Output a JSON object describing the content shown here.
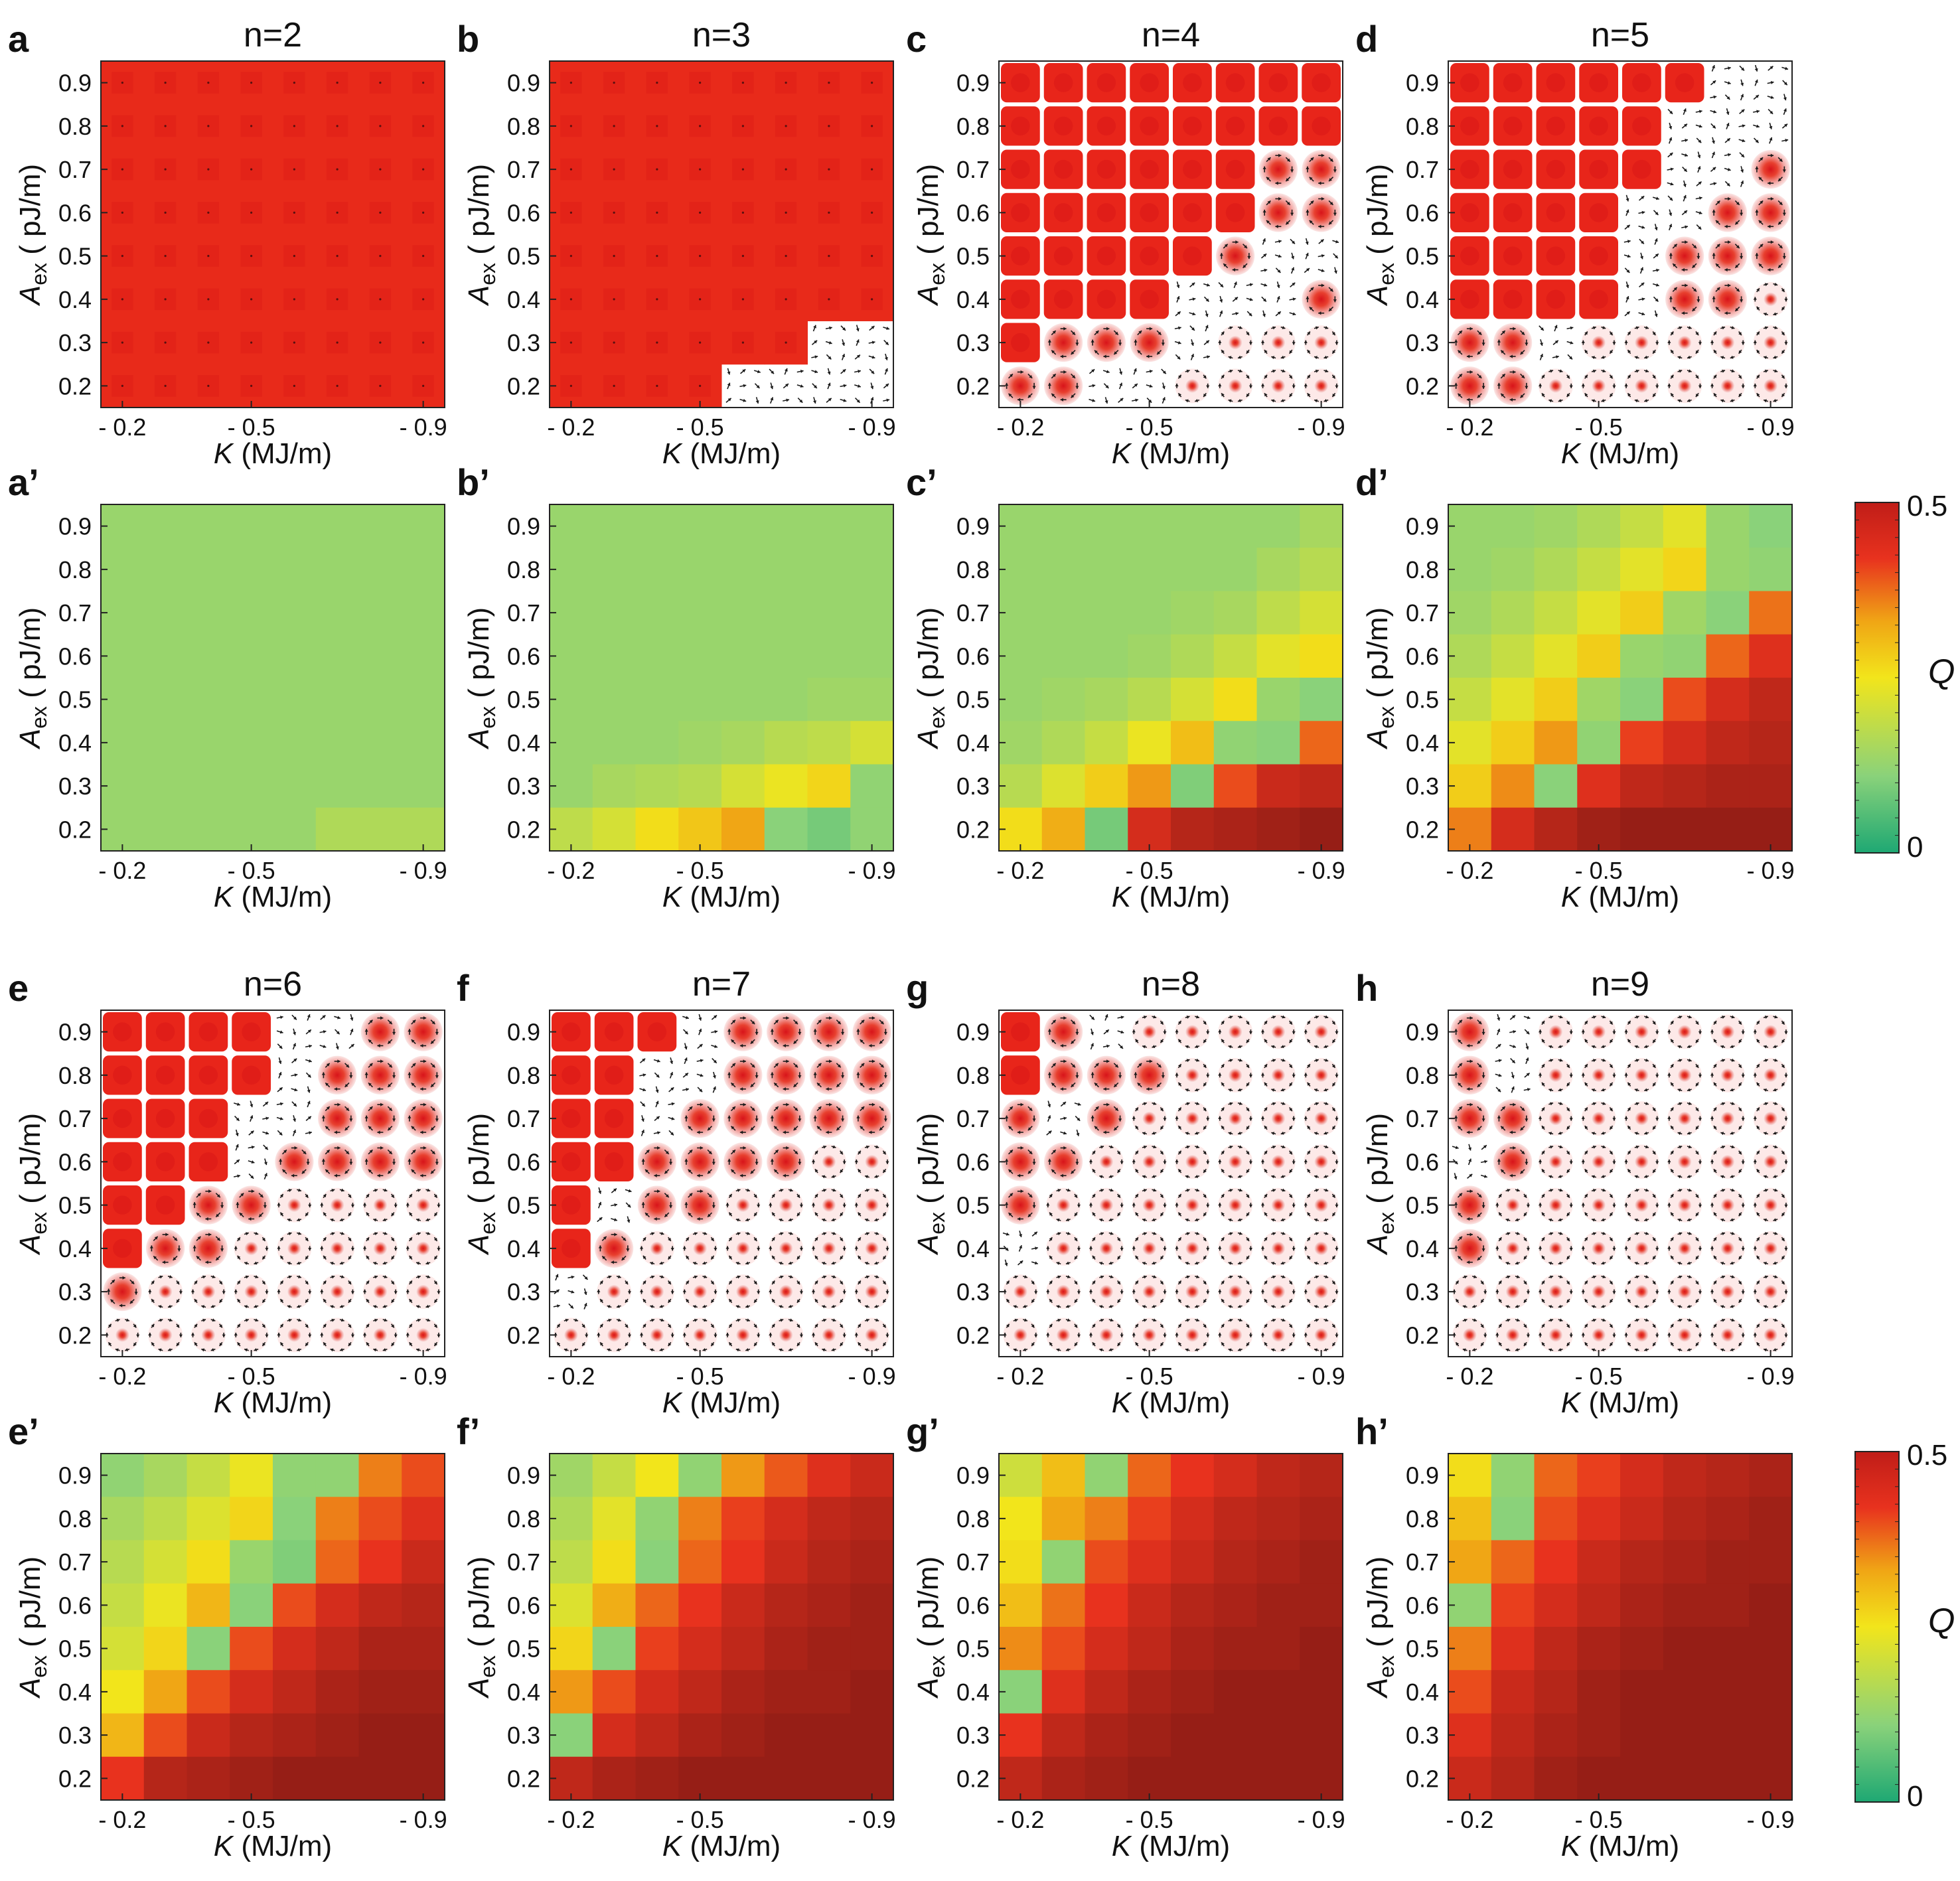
{
  "figure": {
    "xlabel": "K (MJ/m)",
    "ylabel": "A_ex (pJ/m)",
    "xlabel_parts": {
      "italic": "K",
      "rest": " (MJ/m)"
    },
    "ylabel_parts": {
      "italic": "A",
      "sub": "ex",
      "rest": " ( pJ/m)"
    },
    "x_ticks": [
      "- 0.2",
      "- 0.5",
      "- 0.9"
    ],
    "y_ticks": [
      "0.9",
      "0.8",
      "0.7",
      "0.6",
      "0.5",
      "0.4",
      "0.3",
      "0.2"
    ],
    "colorbar": {
      "label": "Q",
      "max_label": "0.5",
      "min_label": "0",
      "min": 0,
      "max": 0.5,
      "colors": [
        "#1ea873",
        "#8ad27a",
        "#f2e51b",
        "#f0a615",
        "#e8321e",
        "#c01d18"
      ]
    },
    "colors": {
      "skyrmion_fill": "#e8251a",
      "background": "#ffffff",
      "arrow": "#1a1a1a"
    }
  },
  "chart_data": [
    {
      "panel": "a",
      "n": 2,
      "title": "n=2",
      "type": "heatmap",
      "plot": "spin-texture",
      "x": [
        -0.2,
        -0.3,
        -0.4,
        -0.5,
        -0.6,
        -0.7,
        -0.8,
        -0.9
      ],
      "y": [
        0.9,
        0.8,
        0.7,
        0.6,
        0.5,
        0.4,
        0.3,
        0.2
      ],
      "state": [
        "FFFFFFFF",
        "FFFFFFFF",
        "FFFFFFFF",
        "FFFFFFFF",
        "FFFFFFFF",
        "FFFFFFFF",
        "FFFFFFFF",
        "FFFFFFFF"
      ]
    },
    {
      "panel": "b",
      "n": 3,
      "title": "n=3",
      "type": "heatmap",
      "plot": "spin-texture",
      "x": [
        -0.2,
        -0.3,
        -0.4,
        -0.5,
        -0.6,
        -0.7,
        -0.8,
        -0.9
      ],
      "y": [
        0.9,
        0.8,
        0.7,
        0.6,
        0.5,
        0.4,
        0.3,
        0.2
      ],
      "state": [
        "FFFFFFFF",
        "FFFFFFFF",
        "FFFFFFFF",
        "FFFFFFFF",
        "FFFFFFFF",
        "FFFFFFFF",
        "FFFFFFTT",
        "FFFFTTTT"
      ]
    },
    {
      "panel": "c",
      "n": 4,
      "title": "n=4",
      "type": "heatmap",
      "plot": "spin-texture",
      "x": [
        -0.2,
        -0.3,
        -0.4,
        -0.5,
        -0.6,
        -0.7,
        -0.8,
        -0.9
      ],
      "y": [
        0.9,
        0.8,
        0.7,
        0.6,
        0.5,
        0.4,
        0.3,
        0.2
      ],
      "state": [
        "BBBBBBBB",
        "BBBBBBBB",
        "BBBBBBMM",
        "BBBBBBMM",
        "BBBBBMTT",
        "BBBBTTTM",
        "BMMMTSSS",
        "MMTTSSSS"
      ]
    },
    {
      "panel": "d",
      "n": 5,
      "title": "n=5",
      "type": "heatmap",
      "plot": "spin-texture",
      "x": [
        -0.2,
        -0.3,
        -0.4,
        -0.5,
        -0.6,
        -0.7,
        -0.8,
        -0.9
      ],
      "y": [
        0.9,
        0.8,
        0.7,
        0.6,
        0.5,
        0.4,
        0.3,
        0.2
      ],
      "state": [
        "BBBBBBTT",
        "BBBBBTTT",
        "BBBBBTTM",
        "BBBBTTMM",
        "BBBBTMMM",
        "BBBBTMMS",
        "MMTSSSSS",
        "MMSSSSSS"
      ]
    },
    {
      "panel": "a'",
      "n": 2,
      "type": "heatmap",
      "plot": "Q",
      "x": [
        -0.2,
        -0.3,
        -0.4,
        -0.5,
        -0.6,
        -0.7,
        -0.8,
        -0.9
      ],
      "y": [
        0.9,
        0.8,
        0.7,
        0.6,
        0.5,
        0.4,
        0.3,
        0.2
      ],
      "Q": [
        [
          0.13,
          0.13,
          0.13,
          0.13,
          0.13,
          0.13,
          0.13,
          0.13
        ],
        [
          0.13,
          0.13,
          0.13,
          0.13,
          0.13,
          0.13,
          0.13,
          0.13
        ],
        [
          0.13,
          0.13,
          0.13,
          0.13,
          0.13,
          0.13,
          0.13,
          0.13
        ],
        [
          0.13,
          0.13,
          0.13,
          0.13,
          0.13,
          0.13,
          0.13,
          0.13
        ],
        [
          0.13,
          0.13,
          0.13,
          0.13,
          0.13,
          0.13,
          0.13,
          0.13
        ],
        [
          0.13,
          0.13,
          0.13,
          0.13,
          0.13,
          0.13,
          0.13,
          0.13
        ],
        [
          0.13,
          0.13,
          0.13,
          0.13,
          0.13,
          0.13,
          0.13,
          0.13
        ],
        [
          0.13,
          0.13,
          0.13,
          0.13,
          0.13,
          0.16,
          0.16,
          0.16
        ]
      ]
    },
    {
      "panel": "b'",
      "n": 3,
      "type": "heatmap",
      "plot": "Q",
      "x": [
        -0.2,
        -0.3,
        -0.4,
        -0.5,
        -0.6,
        -0.7,
        -0.8,
        -0.9
      ],
      "y": [
        0.9,
        0.8,
        0.7,
        0.6,
        0.5,
        0.4,
        0.3,
        0.2
      ],
      "Q": [
        [
          0.13,
          0.13,
          0.13,
          0.13,
          0.13,
          0.13,
          0.13,
          0.13
        ],
        [
          0.13,
          0.13,
          0.13,
          0.13,
          0.13,
          0.13,
          0.13,
          0.13
        ],
        [
          0.13,
          0.13,
          0.13,
          0.13,
          0.13,
          0.13,
          0.13,
          0.13
        ],
        [
          0.13,
          0.13,
          0.13,
          0.13,
          0.13,
          0.13,
          0.13,
          0.13
        ],
        [
          0.13,
          0.13,
          0.13,
          0.13,
          0.13,
          0.13,
          0.14,
          0.14
        ],
        [
          0.13,
          0.13,
          0.13,
          0.14,
          0.15,
          0.17,
          0.18,
          0.21
        ],
        [
          0.13,
          0.15,
          0.16,
          0.17,
          0.21,
          0.24,
          0.27,
          0.12
        ],
        [
          0.18,
          0.21,
          0.26,
          0.29,
          0.33,
          0.11,
          0.09,
          0.12
        ]
      ]
    },
    {
      "panel": "c'",
      "n": 4,
      "type": "heatmap",
      "plot": "Q",
      "x": [
        -0.2,
        -0.3,
        -0.4,
        -0.5,
        -0.6,
        -0.7,
        -0.8,
        -0.9
      ],
      "y": [
        0.9,
        0.8,
        0.7,
        0.6,
        0.5,
        0.4,
        0.3,
        0.2
      ],
      "Q": [
        [
          0.13,
          0.13,
          0.13,
          0.13,
          0.13,
          0.13,
          0.13,
          0.15
        ],
        [
          0.13,
          0.13,
          0.13,
          0.13,
          0.13,
          0.13,
          0.15,
          0.17
        ],
        [
          0.13,
          0.13,
          0.13,
          0.13,
          0.14,
          0.15,
          0.18,
          0.21
        ],
        [
          0.13,
          0.13,
          0.13,
          0.14,
          0.16,
          0.19,
          0.23,
          0.26
        ],
        [
          0.13,
          0.14,
          0.15,
          0.17,
          0.21,
          0.26,
          0.13,
          0.11
        ],
        [
          0.14,
          0.16,
          0.19,
          0.24,
          0.3,
          0.12,
          0.11,
          0.38
        ],
        [
          0.17,
          0.22,
          0.28,
          0.34,
          0.1,
          0.4,
          0.45,
          0.46
        ],
        [
          0.26,
          0.32,
          0.09,
          0.44,
          0.47,
          0.48,
          0.49,
          0.5
        ]
      ]
    },
    {
      "panel": "d'",
      "n": 5,
      "type": "heatmap",
      "plot": "Q",
      "x": [
        -0.2,
        -0.3,
        -0.4,
        -0.5,
        -0.6,
        -0.7,
        -0.8,
        -0.9
      ],
      "y": [
        0.9,
        0.8,
        0.7,
        0.6,
        0.5,
        0.4,
        0.3,
        0.2
      ],
      "Q": [
        [
          0.13,
          0.13,
          0.14,
          0.16,
          0.19,
          0.23,
          0.13,
          0.11
        ],
        [
          0.13,
          0.14,
          0.16,
          0.19,
          0.23,
          0.27,
          0.13,
          0.12
        ],
        [
          0.14,
          0.16,
          0.19,
          0.23,
          0.28,
          0.14,
          0.11,
          0.37
        ],
        [
          0.16,
          0.19,
          0.23,
          0.28,
          0.13,
          0.12,
          0.38,
          0.43
        ],
        [
          0.19,
          0.23,
          0.28,
          0.14,
          0.11,
          0.4,
          0.44,
          0.46
        ],
        [
          0.23,
          0.28,
          0.34,
          0.12,
          0.41,
          0.44,
          0.46,
          0.47
        ],
        [
          0.28,
          0.35,
          0.11,
          0.43,
          0.46,
          0.47,
          0.48,
          0.48
        ],
        [
          0.36,
          0.44,
          0.47,
          0.49,
          0.5,
          0.5,
          0.5,
          0.5
        ]
      ]
    },
    {
      "panel": "e",
      "n": 6,
      "title": "n=6",
      "type": "heatmap",
      "plot": "spin-texture",
      "x": [
        -0.2,
        -0.3,
        -0.4,
        -0.5,
        -0.6,
        -0.7,
        -0.8,
        -0.9
      ],
      "y": [
        0.9,
        0.8,
        0.7,
        0.6,
        0.5,
        0.4,
        0.3,
        0.2
      ],
      "state": [
        "BBBBTTMM",
        "BBBBTMMM",
        "BBBTTMMM",
        "BBBTMMMM",
        "BBMMSSSS",
        "BMMSSSSS",
        "MSSSSSSS",
        "SSSSSSSS"
      ]
    },
    {
      "panel": "f",
      "n": 7,
      "title": "n=7",
      "type": "heatmap",
      "plot": "spin-texture",
      "x": [
        -0.2,
        -0.3,
        -0.4,
        -0.5,
        -0.6,
        -0.7,
        -0.8,
        -0.9
      ],
      "y": [
        0.9,
        0.8,
        0.7,
        0.6,
        0.5,
        0.4,
        0.3,
        0.2
      ],
      "state": [
        "BBBTMMMM",
        "BBTTMMMM",
        "BBTMMMMM",
        "BBMMMMSS",
        "BTMMSSSS",
        "BMSSSSSS",
        "TSSSSSSS",
        "SSSSSSSS"
      ]
    },
    {
      "panel": "g",
      "n": 8,
      "title": "n=8",
      "type": "heatmap",
      "plot": "spin-texture",
      "x": [
        -0.2,
        -0.3,
        -0.4,
        -0.5,
        -0.6,
        -0.7,
        -0.8,
        -0.9
      ],
      "y": [
        0.9,
        0.8,
        0.7,
        0.6,
        0.5,
        0.4,
        0.3,
        0.2
      ],
      "state": [
        "BMTSSSSS",
        "BMMMSSSS",
        "MTMSSSSS",
        "MMSSSSSS",
        "MSSSSSSS",
        "TSSSSSSS",
        "SSSSSSSS",
        "SSSSSSSS"
      ]
    },
    {
      "panel": "h",
      "n": 9,
      "title": "n=9",
      "type": "heatmap",
      "plot": "spin-texture",
      "x": [
        -0.2,
        -0.3,
        -0.4,
        -0.5,
        -0.6,
        -0.7,
        -0.8,
        -0.9
      ],
      "y": [
        0.9,
        0.8,
        0.7,
        0.6,
        0.5,
        0.4,
        0.3,
        0.2
      ],
      "state": [
        "MTSSSSSS",
        "MTSSSSSS",
        "MMSSSSSS",
        "TMSSSSSS",
        "MSSSSSSS",
        "MSSSSSSS",
        "SSSSSSSS",
        "SSSSSSSS"
      ]
    },
    {
      "panel": "e'",
      "n": 6,
      "type": "heatmap",
      "plot": "Q",
      "x": [
        -0.2,
        -0.3,
        -0.4,
        -0.5,
        -0.6,
        -0.7,
        -0.8,
        -0.9
      ],
      "y": [
        0.9,
        0.8,
        0.7,
        0.6,
        0.5,
        0.4,
        0.3,
        0.2
      ],
      "Q": [
        [
          0.12,
          0.15,
          0.19,
          0.24,
          0.12,
          0.12,
          0.36,
          0.4
        ],
        [
          0.15,
          0.18,
          0.22,
          0.27,
          0.11,
          0.36,
          0.4,
          0.43
        ],
        [
          0.17,
          0.21,
          0.26,
          0.13,
          0.1,
          0.38,
          0.42,
          0.45
        ],
        [
          0.19,
          0.24,
          0.31,
          0.11,
          0.4,
          0.44,
          0.46,
          0.47
        ],
        [
          0.21,
          0.27,
          0.11,
          0.4,
          0.44,
          0.46,
          0.48,
          0.48
        ],
        [
          0.25,
          0.33,
          0.4,
          0.44,
          0.46,
          0.48,
          0.49,
          0.49
        ],
        [
          0.31,
          0.4,
          0.45,
          0.47,
          0.48,
          0.49,
          0.5,
          0.5
        ],
        [
          0.42,
          0.47,
          0.48,
          0.49,
          0.5,
          0.5,
          0.5,
          0.5
        ]
      ]
    },
    {
      "panel": "f'",
      "n": 7,
      "type": "heatmap",
      "plot": "Q",
      "x": [
        -0.2,
        -0.3,
        -0.4,
        -0.5,
        -0.6,
        -0.7,
        -0.8,
        -0.9
      ],
      "y": [
        0.9,
        0.8,
        0.7,
        0.6,
        0.5,
        0.4,
        0.3,
        0.2
      ],
      "Q": [
        [
          0.14,
          0.19,
          0.25,
          0.12,
          0.34,
          0.39,
          0.43,
          0.45
        ],
        [
          0.16,
          0.23,
          0.12,
          0.36,
          0.41,
          0.44,
          0.46,
          0.47
        ],
        [
          0.18,
          0.26,
          0.11,
          0.38,
          0.42,
          0.45,
          0.47,
          0.48
        ],
        [
          0.22,
          0.32,
          0.38,
          0.42,
          0.45,
          0.47,
          0.48,
          0.49
        ],
        [
          0.27,
          0.11,
          0.41,
          0.44,
          0.46,
          0.48,
          0.49,
          0.49
        ],
        [
          0.34,
          0.4,
          0.44,
          0.46,
          0.48,
          0.49,
          0.49,
          0.5
        ],
        [
          0.11,
          0.44,
          0.46,
          0.48,
          0.49,
          0.5,
          0.5,
          0.5
        ],
        [
          0.46,
          0.48,
          0.49,
          0.5,
          0.5,
          0.5,
          0.5,
          0.5
        ]
      ]
    },
    {
      "panel": "g'",
      "n": 8,
      "type": "heatmap",
      "plot": "Q",
      "x": [
        -0.2,
        -0.3,
        -0.4,
        -0.5,
        -0.6,
        -0.7,
        -0.8,
        -0.9
      ],
      "y": [
        0.9,
        0.8,
        0.7,
        0.6,
        0.5,
        0.4,
        0.3,
        0.2
      ],
      "Q": [
        [
          0.2,
          0.3,
          0.12,
          0.38,
          0.42,
          0.44,
          0.46,
          0.47
        ],
        [
          0.25,
          0.33,
          0.36,
          0.41,
          0.44,
          0.46,
          0.47,
          0.48
        ],
        [
          0.26,
          0.12,
          0.4,
          0.43,
          0.45,
          0.47,
          0.48,
          0.49
        ],
        [
          0.3,
          0.37,
          0.42,
          0.45,
          0.47,
          0.48,
          0.49,
          0.49
        ],
        [
          0.35,
          0.4,
          0.44,
          0.46,
          0.48,
          0.49,
          0.49,
          0.5
        ],
        [
          0.11,
          0.43,
          0.46,
          0.48,
          0.49,
          0.5,
          0.5,
          0.5
        ],
        [
          0.42,
          0.46,
          0.48,
          0.49,
          0.5,
          0.5,
          0.5,
          0.5
        ],
        [
          0.46,
          0.48,
          0.49,
          0.5,
          0.5,
          0.5,
          0.5,
          0.5
        ]
      ]
    },
    {
      "panel": "h'",
      "n": 9,
      "type": "heatmap",
      "plot": "Q",
      "x": [
        -0.2,
        -0.3,
        -0.4,
        -0.5,
        -0.6,
        -0.7,
        -0.8,
        -0.9
      ],
      "y": [
        0.9,
        0.8,
        0.7,
        0.6,
        0.5,
        0.4,
        0.3,
        0.2
      ],
      "Q": [
        [
          0.26,
          0.12,
          0.38,
          0.41,
          0.44,
          0.46,
          0.47,
          0.48
        ],
        [
          0.3,
          0.11,
          0.4,
          0.43,
          0.45,
          0.47,
          0.48,
          0.49
        ],
        [
          0.33,
          0.38,
          0.42,
          0.45,
          0.47,
          0.48,
          0.49,
          0.49
        ],
        [
          0.12,
          0.41,
          0.44,
          0.46,
          0.48,
          0.49,
          0.49,
          0.5
        ],
        [
          0.36,
          0.43,
          0.46,
          0.48,
          0.49,
          0.5,
          0.5,
          0.5
        ],
        [
          0.4,
          0.45,
          0.47,
          0.49,
          0.5,
          0.5,
          0.5,
          0.5
        ],
        [
          0.43,
          0.46,
          0.48,
          0.49,
          0.5,
          0.5,
          0.5,
          0.5
        ],
        [
          0.45,
          0.47,
          0.49,
          0.5,
          0.5,
          0.5,
          0.5,
          0.5
        ]
      ]
    }
  ]
}
